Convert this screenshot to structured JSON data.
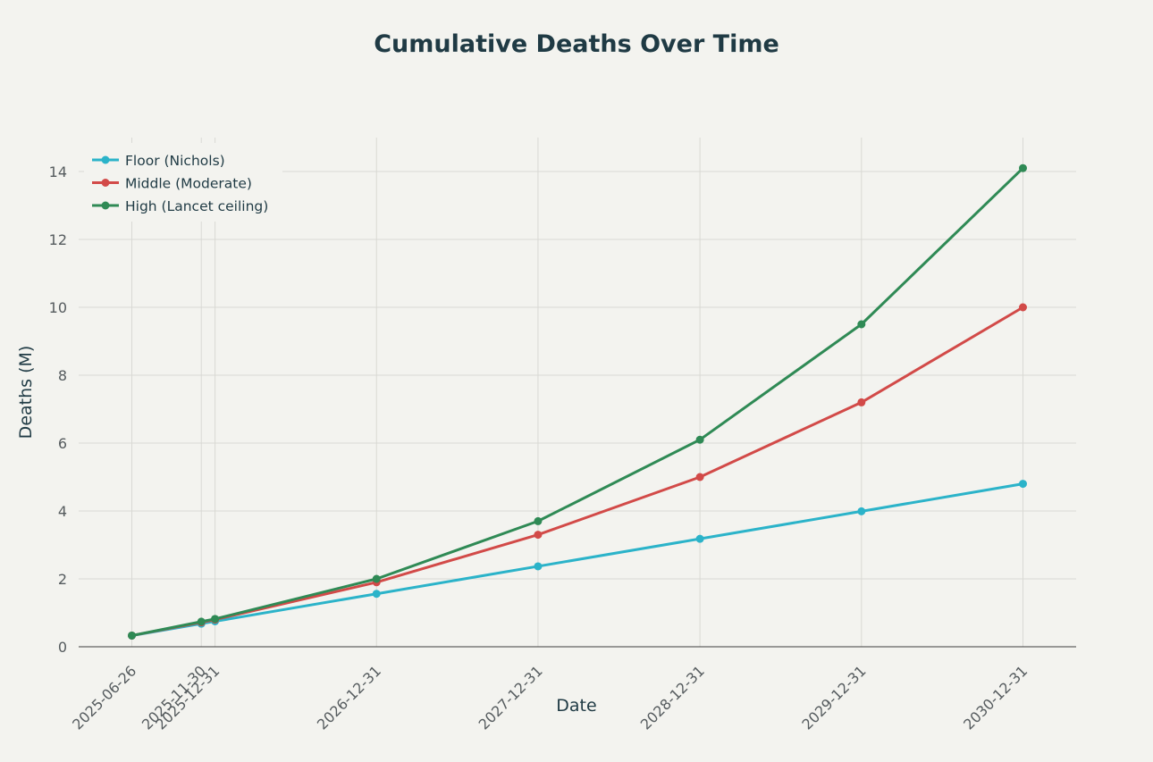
{
  "chart_data": {
    "type": "line",
    "title": "Cumulative Deaths Over Time",
    "xlabel": "Date",
    "ylabel": "Deaths (M)",
    "ylim": [
      0,
      15
    ],
    "yticks": [
      0,
      2,
      4,
      6,
      8,
      10,
      12,
      14
    ],
    "x": [
      "2025-06-26",
      "2025-11-30",
      "2025-12-31",
      "2026-12-31",
      "2027-12-31",
      "2028-12-31",
      "2029-12-31",
      "2030-12-31"
    ],
    "xrange": [
      "2025-06-26",
      "2030-12-31"
    ],
    "grid": true,
    "legend_position": "top-left",
    "series": [
      {
        "name": "Floor (Nichols)",
        "color": "#2bb3c9",
        "values": [
          0.33,
          0.68,
          0.75,
          1.56,
          2.37,
          3.18,
          3.99,
          4.8
        ]
      },
      {
        "name": "Middle (Moderate)",
        "color": "#d24a48",
        "values": [
          0.33,
          0.72,
          0.8,
          1.9,
          3.3,
          5.0,
          7.2,
          10.0
        ]
      },
      {
        "name": "High (Lancet ceiling)",
        "color": "#2f8a55",
        "values": [
          0.33,
          0.74,
          0.82,
          2.0,
          3.7,
          6.1,
          9.5,
          14.1
        ]
      }
    ]
  }
}
